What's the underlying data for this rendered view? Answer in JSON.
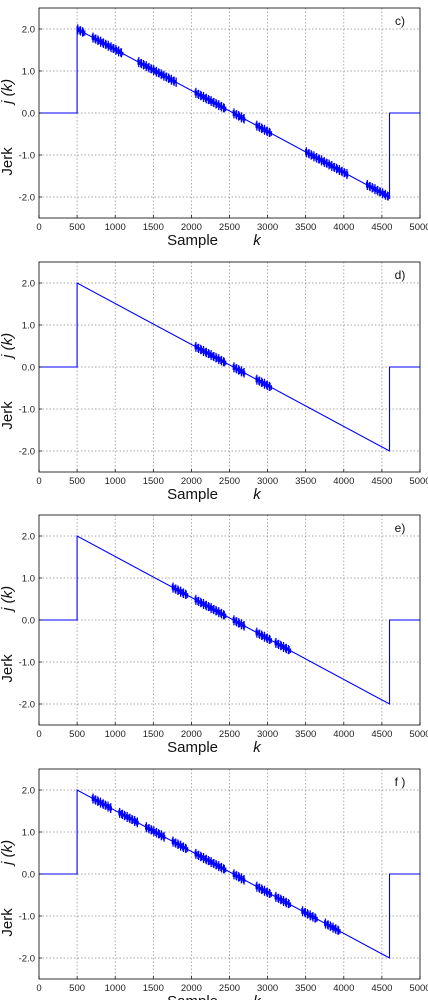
{
  "chart_data": [
    {
      "type": "line",
      "panel_label": "c)",
      "xlabel": "Sample",
      "xlabel_symbol": "k",
      "ylabel": "Jerk",
      "ylabel_symbol": "j (k)",
      "xlim": [
        0,
        5000
      ],
      "ylim": [
        -2.5,
        2.5
      ],
      "xticks": [
        0,
        500,
        1000,
        1500,
        2000,
        2500,
        3000,
        3500,
        4000,
        4500,
        5000
      ],
      "xtick_labels": [
        "0",
        "500",
        "1000",
        "1500",
        "2000",
        "2500",
        "3000",
        "3500",
        "4000",
        "4500",
        "5000"
      ],
      "yticks": [
        2.0,
        1.0,
        0.0,
        -1.0,
        -2.0
      ],
      "ytick_labels": [
        "2.0",
        "1.0",
        "0.0",
        "-1.0",
        "-2.0"
      ],
      "grid": true,
      "series": [
        {
          "color": "#0000ff",
          "x": [
            0,
            500,
            500,
            4600,
            4600,
            5000
          ],
          "y": [
            0,
            0,
            2.0,
            -2.0,
            0,
            0
          ],
          "chatter_regions": [
            [
              500,
              600
            ],
            [
              700,
              1100
            ],
            [
              1300,
              1800
            ],
            [
              2050,
              2250
            ],
            [
              2250,
              2450
            ],
            [
              2550,
              2700
            ],
            [
              2850,
              3050
            ],
            [
              3500,
              4050
            ],
            [
              4300,
              4600
            ]
          ]
        }
      ]
    },
    {
      "type": "line",
      "panel_label": "d)",
      "xlabel": "Sample",
      "xlabel_symbol": "k",
      "ylabel": "Jerk",
      "ylabel_symbol": "j (k)",
      "xlim": [
        0,
        5000
      ],
      "ylim": [
        -2.5,
        2.5
      ],
      "xticks": [
        0,
        500,
        1000,
        1500,
        2000,
        2500,
        3000,
        3500,
        4000,
        4500,
        5000
      ],
      "xtick_labels": [
        "0",
        "500",
        "1000",
        "1500",
        "2000",
        "2500",
        "3000",
        "3500",
        "4000",
        "4500",
        "5000"
      ],
      "yticks": [
        2.0,
        1.0,
        0.0,
        -1.0,
        -2.0
      ],
      "ytick_labels": [
        "2.0",
        "1.0",
        "0.0",
        "-1.0",
        "-2.0"
      ],
      "grid": true,
      "series": [
        {
          "color": "#0000ff",
          "x": [
            0,
            500,
            500,
            4600,
            4600,
            5000
          ],
          "y": [
            0,
            0,
            2.0,
            -2.0,
            0,
            0
          ],
          "chatter_regions": [
            [
              2050,
              2250
            ],
            [
              2250,
              2450
            ],
            [
              2550,
              2700
            ],
            [
              2850,
              3050
            ]
          ]
        }
      ]
    },
    {
      "type": "line",
      "panel_label": "e)",
      "xlabel": "Sample",
      "xlabel_symbol": "k",
      "ylabel": "Jerk",
      "ylabel_symbol": "j (k)",
      "xlim": [
        0,
        5000
      ],
      "ylim": [
        -2.5,
        2.5
      ],
      "xticks": [
        0,
        500,
        1000,
        1500,
        2000,
        2500,
        3000,
        3500,
        4000,
        4500,
        5000
      ],
      "xtick_labels": [
        "0",
        "500",
        "1000",
        "1500",
        "2000",
        "2500",
        "3000",
        "3500",
        "4000",
        "4500",
        "5000"
      ],
      "yticks": [
        2.0,
        1.0,
        0.0,
        -1.0,
        -2.0
      ],
      "ytick_labels": [
        "2.0",
        "1.0",
        "0.0",
        "-1.0",
        "-2.0"
      ],
      "grid": true,
      "series": [
        {
          "color": "#0000ff",
          "x": [
            0,
            500,
            500,
            4600,
            4600,
            5000
          ],
          "y": [
            0,
            0,
            2.0,
            -2.0,
            0,
            0
          ],
          "chatter_regions": [
            [
              1750,
              1950
            ],
            [
              2050,
              2250
            ],
            [
              2250,
              2450
            ],
            [
              2550,
              2700
            ],
            [
              2850,
              3050
            ],
            [
              3100,
              3300
            ]
          ]
        }
      ]
    },
    {
      "type": "line",
      "panel_label": "f )",
      "xlabel": "Sample",
      "xlabel_symbol": "k",
      "ylabel": "Jerk",
      "ylabel_symbol": "j (k)",
      "xlim": [
        0,
        5000
      ],
      "ylim": [
        -2.5,
        2.5
      ],
      "xticks": [
        0,
        500,
        1000,
        1500,
        2000,
        2500,
        3000,
        3500,
        4000,
        4500,
        5000
      ],
      "xtick_labels": [
        "0",
        "500",
        "1000",
        "1500",
        "2000",
        "2500",
        "3000",
        "3500",
        "4000",
        "4500",
        "5000"
      ],
      "yticks": [
        2.0,
        1.0,
        0.0,
        -1.0,
        -2.0
      ],
      "ytick_labels": [
        "2.0",
        "1.0",
        "0.0",
        "-1.0",
        "-2.0"
      ],
      "grid": true,
      "series": [
        {
          "color": "#0000ff",
          "x": [
            0,
            500,
            500,
            4600,
            4600,
            5000
          ],
          "y": [
            0,
            0,
            2.0,
            -2.0,
            0,
            0
          ],
          "chatter_regions": [
            [
              700,
              950
            ],
            [
              1050,
              1300
            ],
            [
              1400,
              1650
            ],
            [
              1750,
              1950
            ],
            [
              2050,
              2250
            ],
            [
              2250,
              2450
            ],
            [
              2550,
              2700
            ],
            [
              2850,
              3050
            ],
            [
              3100,
              3300
            ],
            [
              3450,
              3650
            ],
            [
              3750,
              3950
            ]
          ]
        }
      ]
    }
  ]
}
